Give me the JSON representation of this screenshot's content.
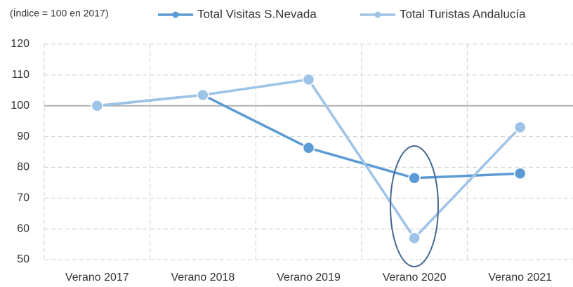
{
  "chart_data": {
    "type": "line",
    "subtitle": "(Índice = 100 en 2017)",
    "categories": [
      "Verano 2017",
      "Verano 2018",
      "Verano 2019",
      "Verano 2020",
      "Verano 2021"
    ],
    "series": [
      {
        "name": "Total Visitas S.Nevada",
        "color": "#5b9bd5",
        "values": [
          100,
          103.5,
          86.3,
          76.5,
          78
        ]
      },
      {
        "name": "Total Turistas Andalucía",
        "color": "#9dc3e6",
        "values": [
          100,
          103.5,
          108.5,
          57,
          93
        ]
      }
    ],
    "ylim": [
      50,
      120
    ],
    "yticks": [
      50,
      60,
      70,
      80,
      90,
      100,
      110,
      120
    ],
    "grid": true,
    "reference_line": 100,
    "legend": "top"
  }
}
